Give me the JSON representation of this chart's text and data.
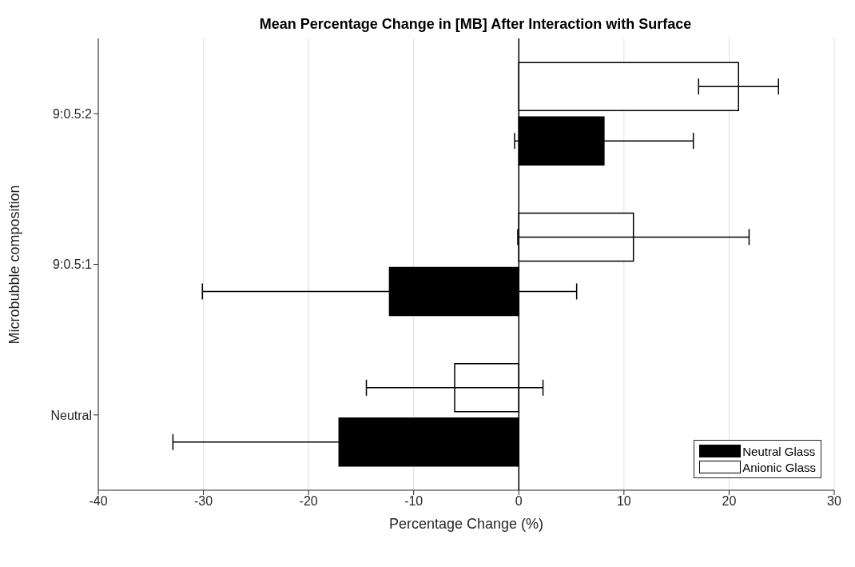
{
  "chart_data": {
    "type": "bar",
    "orientation": "horizontal",
    "title": "Mean Percentage Change in [MB] After Interaction with Surface",
    "xlabel": "Percentage Change (%)",
    "ylabel": "Microbubble composition",
    "categories": [
      "9:0.5:2",
      "9:0.5:1",
      "Neutral"
    ],
    "series": [
      {
        "name": "Neutral Glass",
        "color": "#000000",
        "values": [
          8.1,
          -12.3,
          -17.1
        ],
        "errors": [
          8.5,
          17.8,
          15.8
        ]
      },
      {
        "name": "Anionic Glass",
        "color": "#ffffff",
        "values": [
          20.9,
          10.9,
          -6.1
        ],
        "errors": [
          3.8,
          11,
          8.4
        ]
      }
    ],
    "xlim": [
      -40,
      30
    ],
    "xticks": [
      -40,
      -30,
      -20,
      -10,
      0,
      10,
      20,
      30
    ],
    "ref_lines": [
      {
        "axis": "x",
        "value": 0,
        "color": "#000000"
      }
    ],
    "grid": "x",
    "legend": "bottom right"
  }
}
